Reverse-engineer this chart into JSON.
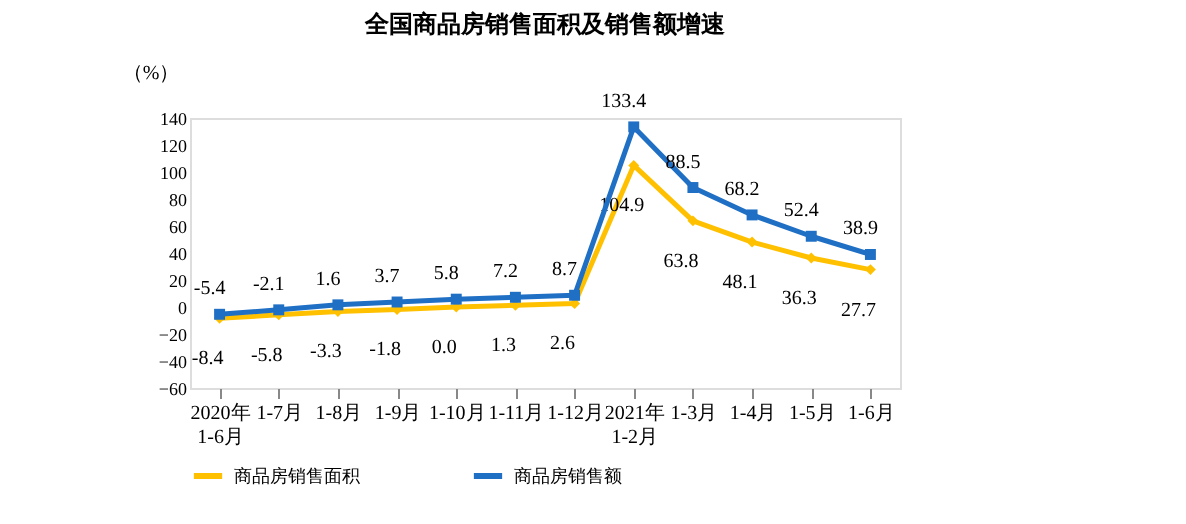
{
  "chart_data": {
    "type": "line",
    "title": "全国商品房销售面积及销售额增速",
    "ylabel": "（%）",
    "categories": [
      "2020年\n1-6月",
      "1-7月",
      "1-8月",
      "1-9月",
      "1-10月",
      "1-11月",
      "1-12月",
      "2021年\n1-2月",
      "1-3月",
      "1-4月",
      "1-5月",
      "1-6月"
    ],
    "series": [
      {
        "name": "商品房销售面积",
        "color": "#ffc000",
        "marker": "diamond",
        "values": [
          -8.4,
          -5.8,
          -3.3,
          -1.8,
          0.0,
          1.3,
          2.6,
          104.9,
          63.8,
          48.1,
          36.3,
          27.7
        ],
        "value_labels": [
          "-8.4",
          "-5.8",
          "-3.3",
          "-1.8",
          "0.0",
          "1.3",
          "2.6",
          "104.9",
          "63.8",
          "48.1",
          "36.3",
          "27.7"
        ]
      },
      {
        "name": "商品房销售额",
        "color": "#1f6fc5",
        "marker": "square",
        "values": [
          -5.4,
          -2.1,
          1.6,
          3.7,
          5.8,
          7.2,
          8.7,
          133.4,
          88.5,
          68.2,
          52.4,
          38.9
        ],
        "value_labels": [
          "-5.4",
          "-2.1",
          "1.6",
          "3.7",
          "5.8",
          "7.2",
          "8.7",
          "133.4",
          "88.5",
          "68.2",
          "52.4",
          "38.9"
        ]
      }
    ],
    "ylim": [
      -60,
      140
    ],
    "yticks": [
      -60,
      -40,
      -20,
      0,
      20,
      40,
      60,
      80,
      100,
      120,
      140
    ],
    "grid": false,
    "legend": "bottom",
    "line_style": "solid"
  }
}
